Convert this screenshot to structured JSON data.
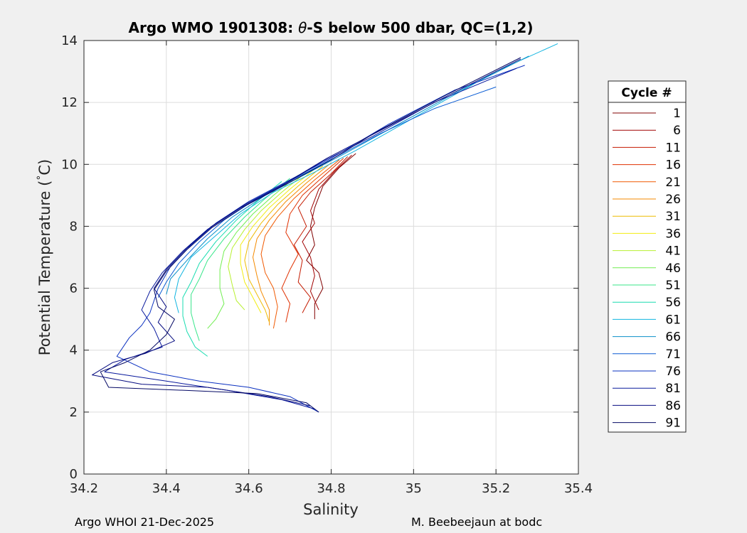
{
  "chart_data": {
    "type": "line",
    "title_prefix": "Argo WMO 1901308: ",
    "title_symbol": "θ",
    "title_suffix": "-S below 500 dbar,  QC=(1,2)",
    "xlabel": "Salinity",
    "ylabel": "Potential Temperature (",
    "ylabel_degree": "°",
    "ylabel_unit": "C)",
    "xlim": [
      34.2,
      35.4
    ],
    "ylim": [
      0,
      14
    ],
    "xticks": [
      34.2,
      34.4,
      34.6,
      34.8,
      35,
      35.2,
      35.4
    ],
    "xtick_labels": [
      "34.2",
      "34.4",
      "34.6",
      "34.8",
      "35",
      "35.2",
      "35.4"
    ],
    "yticks": [
      0,
      2,
      4,
      6,
      8,
      10,
      12,
      14
    ],
    "ytick_labels": [
      "0",
      "2",
      "4",
      "6",
      "8",
      "10",
      "12",
      "14"
    ],
    "grid": true,
    "legend": {
      "title": "Cycle #",
      "placement": "outside-right",
      "entries": [
        {
          "label": "1",
          "color": "#800000"
        },
        {
          "label": "6",
          "color": "#a00000"
        },
        {
          "label": "11",
          "color": "#c41a00"
        },
        {
          "label": "16",
          "color": "#e03000"
        },
        {
          "label": "21",
          "color": "#f05800"
        },
        {
          "label": "26",
          "color": "#f48a00"
        },
        {
          "label": "31",
          "color": "#eebb00"
        },
        {
          "label": "36",
          "color": "#f2ec10"
        },
        {
          "label": "41",
          "color": "#b8f030"
        },
        {
          "label": "46",
          "color": "#70ee50"
        },
        {
          "label": "51",
          "color": "#38e68a"
        },
        {
          "label": "56",
          "color": "#18dcb0"
        },
        {
          "label": "61",
          "color": "#10b4e0"
        },
        {
          "label": "66",
          "color": "#0a90c8"
        },
        {
          "label": "71",
          "color": "#0a5cd4"
        },
        {
          "label": "76",
          "color": "#0a30c0"
        },
        {
          "label": "81",
          "color": "#08189c"
        },
        {
          "label": "86",
          "color": "#060c80"
        },
        {
          "label": "91",
          "color": "#040864"
        }
      ]
    },
    "series": [
      {
        "color": "#800000",
        "points": [
          [
            34.86,
            10.35
          ],
          [
            34.82,
            9.9
          ],
          [
            34.78,
            9.3
          ],
          [
            34.76,
            8.6
          ],
          [
            34.75,
            8.0
          ],
          [
            34.76,
            7.4
          ],
          [
            34.74,
            6.9
          ],
          [
            34.77,
            6.5
          ],
          [
            34.78,
            6.0
          ],
          [
            34.76,
            5.5
          ],
          [
            34.76,
            5.0
          ]
        ]
      },
      {
        "color": "#a00000",
        "points": [
          [
            34.85,
            10.3
          ],
          [
            34.81,
            9.8
          ],
          [
            34.77,
            9.2
          ],
          [
            34.75,
            8.5
          ],
          [
            34.76,
            8.1
          ],
          [
            34.73,
            7.5
          ],
          [
            34.75,
            7.0
          ],
          [
            34.76,
            6.4
          ],
          [
            34.75,
            5.9
          ],
          [
            34.77,
            5.3
          ]
        ]
      },
      {
        "color": "#c41a00",
        "points": [
          [
            34.84,
            10.25
          ],
          [
            34.8,
            9.7
          ],
          [
            34.75,
            9.1
          ],
          [
            34.72,
            8.6
          ],
          [
            34.74,
            8.0
          ],
          [
            34.71,
            7.4
          ],
          [
            34.73,
            6.9
          ],
          [
            34.72,
            6.2
          ],
          [
            34.75,
            5.7
          ],
          [
            34.73,
            5.2
          ]
        ]
      },
      {
        "color": "#e03000",
        "points": [
          [
            34.83,
            10.2
          ],
          [
            34.78,
            9.6
          ],
          [
            34.73,
            9.0
          ],
          [
            34.7,
            8.4
          ],
          [
            34.69,
            7.8
          ],
          [
            34.72,
            7.1
          ],
          [
            34.7,
            6.6
          ],
          [
            34.68,
            6.0
          ],
          [
            34.7,
            5.5
          ],
          [
            34.69,
            4.9
          ]
        ]
      },
      {
        "color": "#f05800",
        "points": [
          [
            34.82,
            10.15
          ],
          [
            34.76,
            9.5
          ],
          [
            34.71,
            8.9
          ],
          [
            34.67,
            8.3
          ],
          [
            34.64,
            7.7
          ],
          [
            34.63,
            7.1
          ],
          [
            34.64,
            6.5
          ],
          [
            34.66,
            6.0
          ],
          [
            34.67,
            5.4
          ],
          [
            34.66,
            4.7
          ]
        ]
      },
      {
        "color": "#f48a00",
        "points": [
          [
            34.8,
            10.05
          ],
          [
            34.74,
            9.4
          ],
          [
            34.69,
            8.8
          ],
          [
            34.65,
            8.2
          ],
          [
            34.62,
            7.6
          ],
          [
            34.61,
            7.0
          ],
          [
            34.62,
            6.4
          ],
          [
            34.63,
            5.9
          ],
          [
            34.65,
            5.3
          ],
          [
            34.65,
            4.8
          ]
        ]
      },
      {
        "color": "#eebb00",
        "points": [
          [
            34.78,
            9.95
          ],
          [
            34.72,
            9.3
          ],
          [
            34.67,
            8.7
          ],
          [
            34.63,
            8.1
          ],
          [
            34.6,
            7.5
          ],
          [
            34.59,
            6.9
          ],
          [
            34.6,
            6.3
          ],
          [
            34.62,
            5.8
          ],
          [
            34.64,
            5.3
          ],
          [
            34.65,
            4.9
          ]
        ]
      },
      {
        "color": "#f2ec10",
        "points": [
          [
            34.76,
            9.85
          ],
          [
            34.7,
            9.2
          ],
          [
            34.65,
            8.6
          ],
          [
            34.61,
            8.0
          ],
          [
            34.58,
            7.4
          ],
          [
            34.58,
            6.8
          ],
          [
            34.59,
            6.2
          ],
          [
            34.61,
            5.7
          ],
          [
            34.63,
            5.2
          ]
        ]
      },
      {
        "color": "#b8f030",
        "points": [
          [
            34.74,
            9.75
          ],
          [
            34.68,
            9.1
          ],
          [
            34.63,
            8.5
          ],
          [
            34.59,
            7.9
          ],
          [
            34.56,
            7.3
          ],
          [
            34.55,
            6.7
          ],
          [
            34.56,
            6.1
          ],
          [
            34.57,
            5.6
          ],
          [
            34.59,
            5.3
          ]
        ]
      },
      {
        "color": "#70ee50",
        "points": [
          [
            34.72,
            9.65
          ],
          [
            34.66,
            9.0
          ],
          [
            34.61,
            8.4
          ],
          [
            34.57,
            7.8
          ],
          [
            34.54,
            7.2
          ],
          [
            34.53,
            6.6
          ],
          [
            34.53,
            6.0
          ],
          [
            34.54,
            5.5
          ],
          [
            34.52,
            5.0
          ],
          [
            34.5,
            4.7
          ]
        ]
      },
      {
        "color": "#38e68a",
        "points": [
          [
            34.7,
            9.55
          ],
          [
            34.64,
            8.9
          ],
          [
            34.59,
            8.3
          ],
          [
            34.54,
            7.6
          ],
          [
            34.5,
            6.9
          ],
          [
            34.48,
            6.3
          ],
          [
            34.46,
            5.8
          ],
          [
            34.46,
            5.2
          ],
          [
            34.47,
            4.7
          ],
          [
            34.48,
            4.3
          ]
        ]
      },
      {
        "color": "#18dcb0",
        "points": [
          [
            34.68,
            9.45
          ],
          [
            34.62,
            8.8
          ],
          [
            34.57,
            8.2
          ],
          [
            34.52,
            7.5
          ],
          [
            34.48,
            6.8
          ],
          [
            34.46,
            6.2
          ],
          [
            34.44,
            5.7
          ],
          [
            34.44,
            5.1
          ],
          [
            34.45,
            4.6
          ],
          [
            34.47,
            4.1
          ],
          [
            34.5,
            3.8
          ]
        ]
      },
      {
        "color": "#10b4e0",
        "points": [
          [
            35.35,
            13.9
          ],
          [
            35.2,
            13.0
          ],
          [
            35.0,
            11.5
          ],
          [
            34.86,
            10.45
          ],
          [
            34.76,
            9.75
          ],
          [
            34.66,
            9.1
          ],
          [
            34.58,
            8.4
          ],
          [
            34.52,
            7.7
          ],
          [
            34.46,
            7.0
          ],
          [
            34.43,
            6.3
          ],
          [
            34.42,
            5.7
          ],
          [
            34.43,
            5.2
          ]
        ]
      },
      {
        "color": "#0a90c8",
        "points": [
          [
            35.28,
            13.5
          ],
          [
            35.1,
            12.3
          ],
          [
            34.95,
            11.2
          ],
          [
            34.84,
            10.4
          ],
          [
            34.74,
            9.7
          ],
          [
            34.64,
            9.0
          ],
          [
            34.56,
            8.3
          ],
          [
            34.5,
            7.6
          ],
          [
            34.45,
            6.9
          ],
          [
            34.41,
            6.3
          ],
          [
            34.4,
            5.8
          ]
        ]
      },
      {
        "color": "#0a5cd4",
        "points": [
          [
            35.2,
            12.5
          ],
          [
            35.05,
            11.8
          ],
          [
            34.92,
            11.0
          ],
          [
            34.82,
            10.3
          ],
          [
            34.72,
            9.6
          ],
          [
            34.62,
            8.9
          ],
          [
            34.54,
            8.2
          ],
          [
            34.48,
            7.5
          ],
          [
            34.43,
            6.8
          ],
          [
            34.4,
            6.2
          ],
          [
            34.38,
            5.7
          ]
        ]
      },
      {
        "color": "#0a30c0",
        "points": [
          [
            35.27,
            13.2
          ],
          [
            35.1,
            12.4
          ],
          [
            34.94,
            11.3
          ],
          [
            34.8,
            10.2
          ],
          [
            34.7,
            9.5
          ],
          [
            34.6,
            8.8
          ],
          [
            34.52,
            8.1
          ],
          [
            34.46,
            7.4
          ],
          [
            34.41,
            6.7
          ],
          [
            34.38,
            6.0
          ],
          [
            34.36,
            5.2
          ],
          [
            34.34,
            4.8
          ],
          [
            34.31,
            4.4
          ],
          [
            34.28,
            3.8
          ],
          [
            34.36,
            3.3
          ],
          [
            34.48,
            3.0
          ],
          [
            34.6,
            2.8
          ],
          [
            34.7,
            2.5
          ],
          [
            34.77,
            2.0
          ]
        ]
      },
      {
        "color": "#08189c",
        "points": [
          [
            35.25,
            13.1
          ],
          [
            35.05,
            12.0
          ],
          [
            34.9,
            10.9
          ],
          [
            34.78,
            10.1
          ],
          [
            34.68,
            9.3
          ],
          [
            34.58,
            8.6
          ],
          [
            34.5,
            7.9
          ],
          [
            34.44,
            7.2
          ],
          [
            34.39,
            6.5
          ],
          [
            34.36,
            5.9
          ],
          [
            34.34,
            5.3
          ],
          [
            34.37,
            4.7
          ],
          [
            34.39,
            4.1
          ],
          [
            34.3,
            3.7
          ],
          [
            34.25,
            3.3
          ],
          [
            34.4,
            3.0
          ],
          [
            34.55,
            2.7
          ],
          [
            34.68,
            2.4
          ],
          [
            34.76,
            2.1
          ]
        ]
      },
      {
        "color": "#060c80",
        "points": [
          [
            35.26,
            13.4
          ],
          [
            35.08,
            12.2
          ],
          [
            34.92,
            11.1
          ],
          [
            34.79,
            10.2
          ],
          [
            34.69,
            9.4
          ],
          [
            34.59,
            8.7
          ],
          [
            34.51,
            8.0
          ],
          [
            34.45,
            7.3
          ],
          [
            34.4,
            6.6
          ],
          [
            34.37,
            6.0
          ],
          [
            34.4,
            5.4
          ],
          [
            34.38,
            4.9
          ],
          [
            34.42,
            4.3
          ],
          [
            34.35,
            3.9
          ],
          [
            34.27,
            3.6
          ],
          [
            34.22,
            3.2
          ],
          [
            34.34,
            2.9
          ],
          [
            34.5,
            2.8
          ],
          [
            34.65,
            2.5
          ],
          [
            34.75,
            2.2
          ]
        ]
      },
      {
        "color": "#040864",
        "points": [
          [
            35.26,
            13.45
          ],
          [
            35.08,
            12.25
          ],
          [
            34.91,
            11.05
          ],
          [
            34.8,
            10.15
          ],
          [
            34.69,
            9.35
          ],
          [
            34.59,
            8.65
          ],
          [
            34.51,
            7.95
          ],
          [
            34.45,
            7.25
          ],
          [
            34.4,
            6.55
          ],
          [
            34.37,
            5.95
          ],
          [
            34.38,
            5.4
          ],
          [
            34.42,
            5.0
          ],
          [
            34.4,
            4.5
          ],
          [
            34.36,
            4.0
          ],
          [
            34.3,
            3.6
          ],
          [
            34.24,
            3.3
          ],
          [
            34.26,
            2.8
          ],
          [
            34.45,
            2.7
          ],
          [
            34.62,
            2.6
          ],
          [
            34.74,
            2.3
          ],
          [
            34.77,
            2.0
          ]
        ]
      }
    ]
  },
  "footer": {
    "left": "Argo WHOI 21-Dec-2025",
    "right": "M. Beebeejaun at bodc"
  }
}
